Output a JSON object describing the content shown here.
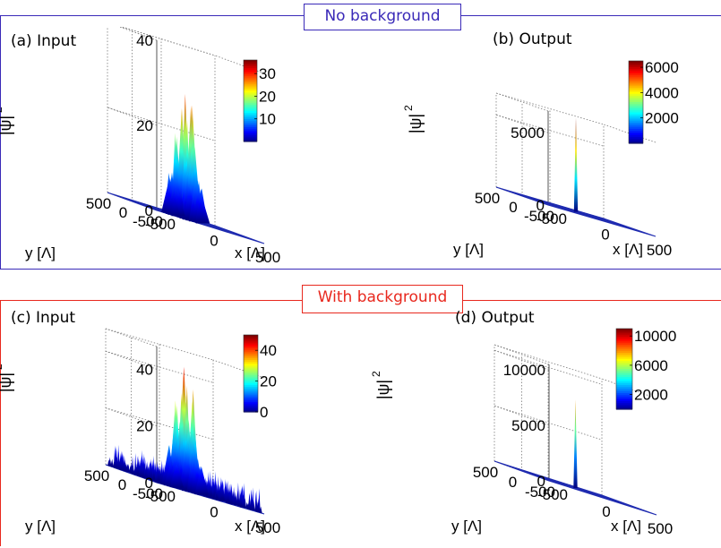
{
  "sections": [
    {
      "label": "No background",
      "color": "#3a2ab8"
    },
    {
      "label": "With background",
      "color": "#e8281e"
    }
  ],
  "chart_data": [
    {
      "type": "surface3d",
      "panel_title": "(a) Input",
      "zlabel": "|ψ|",
      "zlabel_sup": "2",
      "xlabel": "x [Λ]",
      "ylabel": "y [Λ]",
      "z_ticks": [
        "0",
        "20",
        "40"
      ],
      "z_tick_values": [
        0,
        20,
        40
      ],
      "z_range": [
        0,
        40
      ],
      "x_ticks": [
        "-500",
        "0",
        "500"
      ],
      "y_ticks": [
        "500",
        "0",
        "-500"
      ],
      "colorbar_ticks": [
        "30",
        "20",
        "10"
      ],
      "colorbar_tick_values": [
        30,
        20,
        10
      ],
      "colorbar_range": [
        0,
        36
      ],
      "peak_max": 36,
      "background": false
    },
    {
      "type": "surface3d",
      "panel_title": "(b) Output",
      "zlabel": "|ψ|",
      "zlabel_sup": "2",
      "xlabel": "x [Λ]",
      "ylabel": "y [Λ]",
      "z_ticks": [
        "0",
        "5000"
      ],
      "z_tick_values": [
        0,
        5000
      ],
      "z_range": [
        0,
        6500
      ],
      "x_ticks": [
        "-500",
        "0",
        "500"
      ],
      "y_ticks": [
        "500",
        "0",
        "-500"
      ],
      "colorbar_ticks": [
        "6000",
        "4000",
        "2000"
      ],
      "colorbar_tick_values": [
        6000,
        4000,
        2000
      ],
      "colorbar_range": [
        0,
        6500
      ],
      "peak_max": 6500,
      "background": false
    },
    {
      "type": "surface3d",
      "panel_title": "(c) Input",
      "zlabel": "|ψ|",
      "zlabel_sup": "2",
      "xlabel": "x [Λ]",
      "ylabel": "y [Λ]",
      "z_ticks": [
        "0",
        "20",
        "40"
      ],
      "z_tick_values": [
        0,
        20,
        40
      ],
      "z_range": [
        0,
        48
      ],
      "x_ticks": [
        "-500",
        "0",
        "500"
      ],
      "y_ticks": [
        "500",
        "0",
        "-500"
      ],
      "colorbar_ticks": [
        "40",
        "20",
        "0"
      ],
      "colorbar_tick_values": [
        40,
        20,
        0
      ],
      "colorbar_range": [
        0,
        50
      ],
      "peak_max": 48,
      "background": true
    },
    {
      "type": "surface3d",
      "panel_title": "(d) Output",
      "zlabel": "|ψ|",
      "zlabel_sup": "2",
      "xlabel": "x [Λ]",
      "ylabel": "y [Λ]",
      "z_ticks": [
        "0",
        "5000",
        "10000"
      ],
      "z_tick_values": [
        0,
        5000,
        10000
      ],
      "z_range": [
        0,
        10500
      ],
      "x_ticks": [
        "-500",
        "0",
        "500"
      ],
      "y_ticks": [
        "500",
        "0",
        "-500"
      ],
      "colorbar_ticks": [
        "10000",
        "6000",
        "2000"
      ],
      "colorbar_tick_values": [
        10000,
        6000,
        2000
      ],
      "colorbar_range": [
        0,
        11000
      ],
      "peak_max": 8000,
      "background": false
    }
  ]
}
